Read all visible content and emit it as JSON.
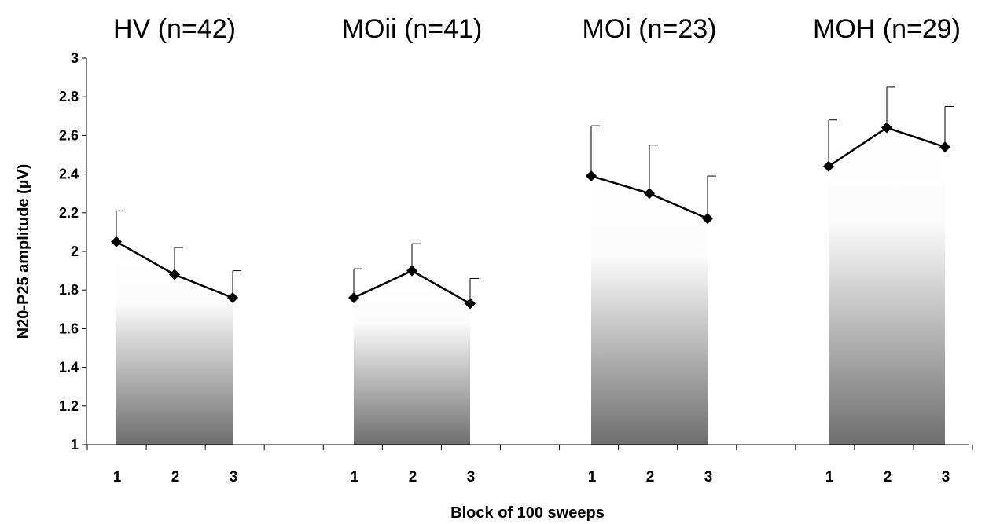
{
  "chart_data": {
    "type": "line",
    "xlabel": "Block of 100 sweeps",
    "ylabel": "N20-P25 amplitude (µV)",
    "ylim": [
      1,
      3
    ],
    "yticks": [
      "1",
      "1.2",
      "1.4",
      "1.6",
      "1.8",
      "2",
      "2.2",
      "2.4",
      "2.6",
      "2.8",
      "3"
    ],
    "categories": [
      "1",
      "2",
      "3"
    ],
    "grid": false,
    "error_bars": "upper",
    "colors": {
      "line": "#000000",
      "fill_top": "#ffffff",
      "fill_bottom": "#6e6e6e"
    },
    "series": [
      {
        "name": "HV (n=42)",
        "values": [
          2.05,
          1.88,
          1.76
        ],
        "error_upper": [
          2.21,
          2.02,
          1.9
        ]
      },
      {
        "name": "MOii (n=41)",
        "values": [
          1.76,
          1.9,
          1.73
        ],
        "error_upper": [
          1.91,
          2.04,
          1.86
        ]
      },
      {
        "name": "MOi (n=23)",
        "values": [
          2.39,
          2.3,
          2.17
        ],
        "error_upper": [
          2.65,
          2.55,
          2.39
        ]
      },
      {
        "name": "MOH (n=29)",
        "values": [
          2.44,
          2.64,
          2.54
        ],
        "error_upper": [
          2.68,
          2.85,
          2.75
        ]
      }
    ]
  }
}
